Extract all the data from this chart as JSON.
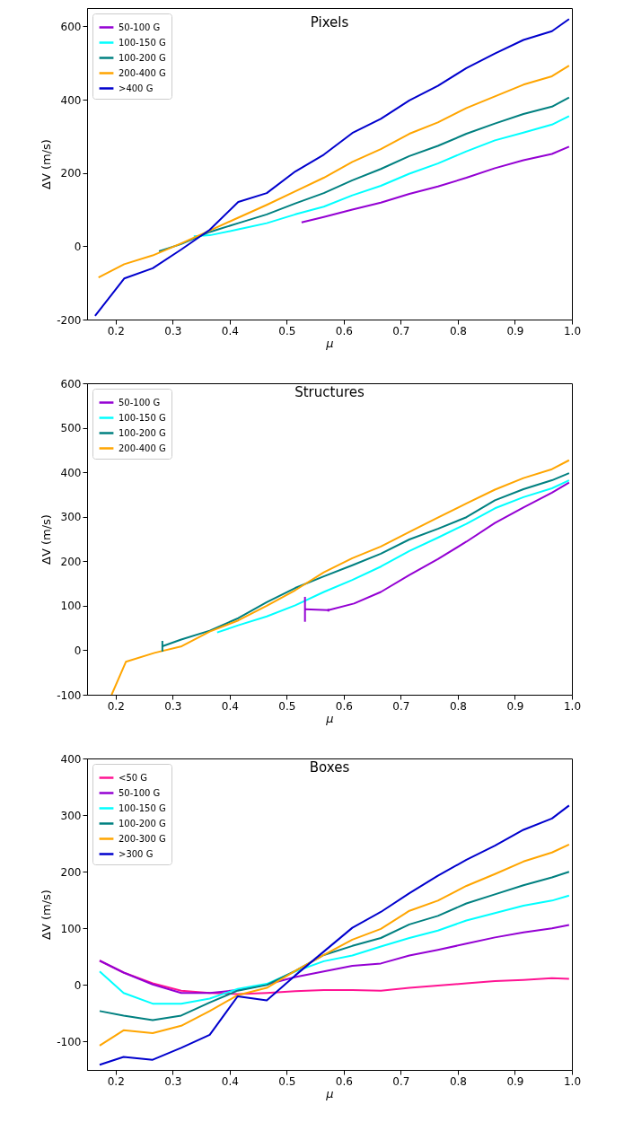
{
  "chart_data": [
    {
      "type": "line",
      "title": "Pixels",
      "xlabel": "μ",
      "ylabel": "ΔV (m/s)",
      "xlim": [
        0.15,
        1.0
      ],
      "ylim": [
        -200,
        650
      ],
      "xticks": [
        {
          "value": 0.2,
          "label": "0.2"
        },
        {
          "value": 0.3,
          "label": "0.3"
        },
        {
          "value": 0.4,
          "label": "0.4"
        },
        {
          "value": 0.5,
          "label": "0.5"
        },
        {
          "value": 0.6,
          "label": "0.6"
        },
        {
          "value": 0.7,
          "label": "0.7"
        },
        {
          "value": 0.8,
          "label": "0.8"
        },
        {
          "value": 0.9,
          "label": "0.9"
        },
        {
          "value": 1.0,
          "label": "1.0"
        }
      ],
      "yticks": [
        -200,
        0,
        200,
        400,
        600
      ],
      "legend": "top left",
      "grid": false,
      "series": [
        {
          "name": "50-100 G",
          "color": "#9400d3",
          "x": [
            0.526,
            0.565,
            0.615,
            0.665,
            0.715,
            0.765,
            0.815,
            0.865,
            0.915,
            0.965,
            0.995
          ],
          "values": [
            65,
            80,
            100,
            119,
            143,
            163,
            187,
            213,
            235,
            252,
            272
          ]
        },
        {
          "name": "100-150 G",
          "color": "#00ffff",
          "x": [
            0.337,
            0.365,
            0.415,
            0.465,
            0.515,
            0.565,
            0.615,
            0.665,
            0.715,
            0.765,
            0.815,
            0.865,
            0.915,
            0.965,
            0.995
          ],
          "values": [
            27,
            30,
            46,
            63,
            87,
            108,
            139,
            165,
            198,
            226,
            259,
            289,
            310,
            332,
            355
          ]
        },
        {
          "name": "100-200 G",
          "color": "#008080",
          "x": [
            0.276,
            0.315,
            0.365,
            0.415,
            0.465,
            0.515,
            0.565,
            0.615,
            0.665,
            0.715,
            0.765,
            0.815,
            0.865,
            0.915,
            0.965,
            0.995
          ],
          "values": [
            -14,
            6,
            39,
            63,
            87,
            117,
            145,
            180,
            211,
            246,
            274,
            307,
            335,
            361,
            381,
            406
          ]
        },
        {
          "name": "200-400 G",
          "color": "#ffa500",
          "x": [
            0.17,
            0.215,
            0.265,
            0.315,
            0.365,
            0.415,
            0.465,
            0.515,
            0.565,
            0.615,
            0.665,
            0.715,
            0.765,
            0.815,
            0.865,
            0.915,
            0.965,
            0.995
          ],
          "values": [
            -85,
            -49,
            -25,
            8,
            43,
            78,
            113,
            150,
            187,
            230,
            265,
            307,
            338,
            377,
            409,
            441,
            464,
            493
          ]
        },
        {
          "name": ">400 G",
          "color": "#0000cd",
          "x": [
            0.164,
            0.215,
            0.265,
            0.315,
            0.365,
            0.415,
            0.465,
            0.515,
            0.565,
            0.615,
            0.665,
            0.715,
            0.765,
            0.815,
            0.865,
            0.915,
            0.965,
            0.995
          ],
          "values": [
            -190,
            -88,
            -60,
            -9,
            45,
            121,
            145,
            204,
            250,
            309,
            348,
            398,
            438,
            486,
            526,
            563,
            587,
            620
          ]
        }
      ]
    },
    {
      "type": "line",
      "title": "Structures",
      "xlabel": "μ",
      "ylabel": "ΔV (m/s)",
      "xlim": [
        0.15,
        1.0
      ],
      "ylim": [
        -100,
        600
      ],
      "xticks": [
        {
          "value": 0.2,
          "label": "0.2"
        },
        {
          "value": 0.3,
          "label": "0.3"
        },
        {
          "value": 0.4,
          "label": "0.4"
        },
        {
          "value": 0.5,
          "label": "0.5"
        },
        {
          "value": 0.6,
          "label": "0.6"
        },
        {
          "value": 0.7,
          "label": "0.7"
        },
        {
          "value": 0.8,
          "label": "0.8"
        },
        {
          "value": 0.9,
          "label": "0.9"
        },
        {
          "value": 1.0,
          "label": "1.0"
        }
      ],
      "yticks": [
        -100,
        0,
        100,
        200,
        300,
        400,
        500,
        600
      ],
      "legend": "top left",
      "grid": false,
      "series": [
        {
          "name": "50-100 G",
          "color": "#9400d3",
          "x": [
            0.532,
            0.573,
            0.618,
            0.665,
            0.715,
            0.765,
            0.815,
            0.865,
            0.915,
            0.965,
            0.995
          ],
          "values": [
            92,
            90,
            105,
            131,
            169,
            205,
            244,
            286,
            321,
            354,
            377
          ],
          "errors": [
            28,
            3,
            null,
            null,
            null,
            null,
            null,
            null,
            null,
            null,
            null
          ]
        },
        {
          "name": "100-150 G",
          "color": "#00ffff",
          "x": [
            0.378,
            0.415,
            0.465,
            0.515,
            0.565,
            0.615,
            0.665,
            0.715,
            0.765,
            0.815,
            0.865,
            0.915,
            0.965,
            0.995
          ],
          "values": [
            40,
            56,
            76,
            101,
            131,
            158,
            188,
            223,
            253,
            284,
            319,
            344,
            364,
            382
          ]
        },
        {
          "name": "100-200 G",
          "color": "#008080",
          "x": [
            0.282,
            0.315,
            0.365,
            0.415,
            0.465,
            0.515,
            0.565,
            0.615,
            0.665,
            0.715,
            0.765,
            0.815,
            0.865,
            0.915,
            0.965,
            0.995
          ],
          "values": [
            9,
            24,
            44,
            72,
            108,
            140,
            166,
            191,
            217,
            249,
            273,
            299,
            337,
            362,
            382,
            398
          ],
          "errors": [
            12,
            null,
            null,
            null,
            null,
            null,
            null,
            null,
            null,
            null,
            null,
            null,
            null,
            null,
            null,
            null
          ]
        },
        {
          "name": "200-400 G",
          "color": "#ffa500",
          "x": [
            0.193,
            0.218,
            0.268,
            0.316,
            0.365,
            0.415,
            0.465,
            0.515,
            0.565,
            0.615,
            0.665,
            0.715,
            0.765,
            0.815,
            0.865,
            0.915,
            0.965,
            0.995
          ],
          "values": [
            -100,
            -26,
            -6,
            9,
            42,
            67,
            100,
            135,
            175,
            207,
            233,
            266,
            298,
            330,
            361,
            387,
            407,
            427
          ]
        }
      ]
    },
    {
      "type": "line",
      "title": "Boxes",
      "xlabel": "μ",
      "ylabel": "ΔV (m/s)",
      "xlim": [
        0.15,
        1.0
      ],
      "ylim": [
        -150,
        400
      ],
      "xticks": [
        {
          "value": 0.2,
          "label": "0.2"
        },
        {
          "value": 0.3,
          "label": "0.3"
        },
        {
          "value": 0.4,
          "label": "0.4"
        },
        {
          "value": 0.5,
          "label": "0.5"
        },
        {
          "value": 0.6,
          "label": "0.6"
        },
        {
          "value": 0.7,
          "label": "0.7"
        },
        {
          "value": 0.8,
          "label": "0.8"
        },
        {
          "value": 0.9,
          "label": "0.9"
        },
        {
          "value": 1.0,
          "label": "1.0"
        }
      ],
      "yticks": [
        -100,
        0,
        100,
        200,
        300,
        400
      ],
      "legend": "top left",
      "grid": false,
      "x": [
        0.172,
        0.214,
        0.265,
        0.315,
        0.365,
        0.414,
        0.465,
        0.515,
        0.565,
        0.615,
        0.665,
        0.715,
        0.765,
        0.815,
        0.865,
        0.915,
        0.965,
        0.995
      ],
      "series": [
        {
          "name": "<50 G",
          "color": "#ff1493",
          "values": [
            43,
            22,
            3,
            -10,
            -14,
            -16,
            -14,
            -11,
            -9,
            -9,
            -10,
            -5,
            -1,
            3,
            7,
            9,
            12,
            11
          ]
        },
        {
          "name": "50-100 G",
          "color": "#9400d3",
          "values": [
            43,
            22,
            1,
            -14,
            -14,
            -9,
            1,
            14,
            24,
            34,
            38,
            52,
            62,
            73,
            84,
            93,
            100,
            106
          ]
        },
        {
          "name": "100-150 G",
          "color": "#00ffff",
          "values": [
            24,
            -14,
            -33,
            -33,
            -24,
            -7,
            2,
            24,
            42,
            52,
            68,
            83,
            96,
            114,
            127,
            140,
            149,
            158
          ]
        },
        {
          "name": "100-200 G",
          "color": "#008080",
          "values": [
            -46,
            -54,
            -62,
            -54,
            -31,
            -10,
            0,
            25,
            53,
            69,
            83,
            107,
            122,
            144,
            160,
            176,
            190,
            200
          ]
        },
        {
          "name": "200-300 G",
          "color": "#ffa500",
          "values": [
            -107,
            -80,
            -85,
            -72,
            -46,
            -18,
            -5,
            25,
            53,
            80,
            99,
            131,
            149,
            175,
            196,
            218,
            234,
            248
          ]
        },
        {
          "name": ">300 G",
          "color": "#0000cd",
          "values": [
            -141,
            -127,
            -132,
            -111,
            -88,
            -20,
            -27,
            17,
            59,
            101,
            129,
            162,
            193,
            221,
            246,
            274,
            294,
            317
          ]
        }
      ]
    }
  ]
}
